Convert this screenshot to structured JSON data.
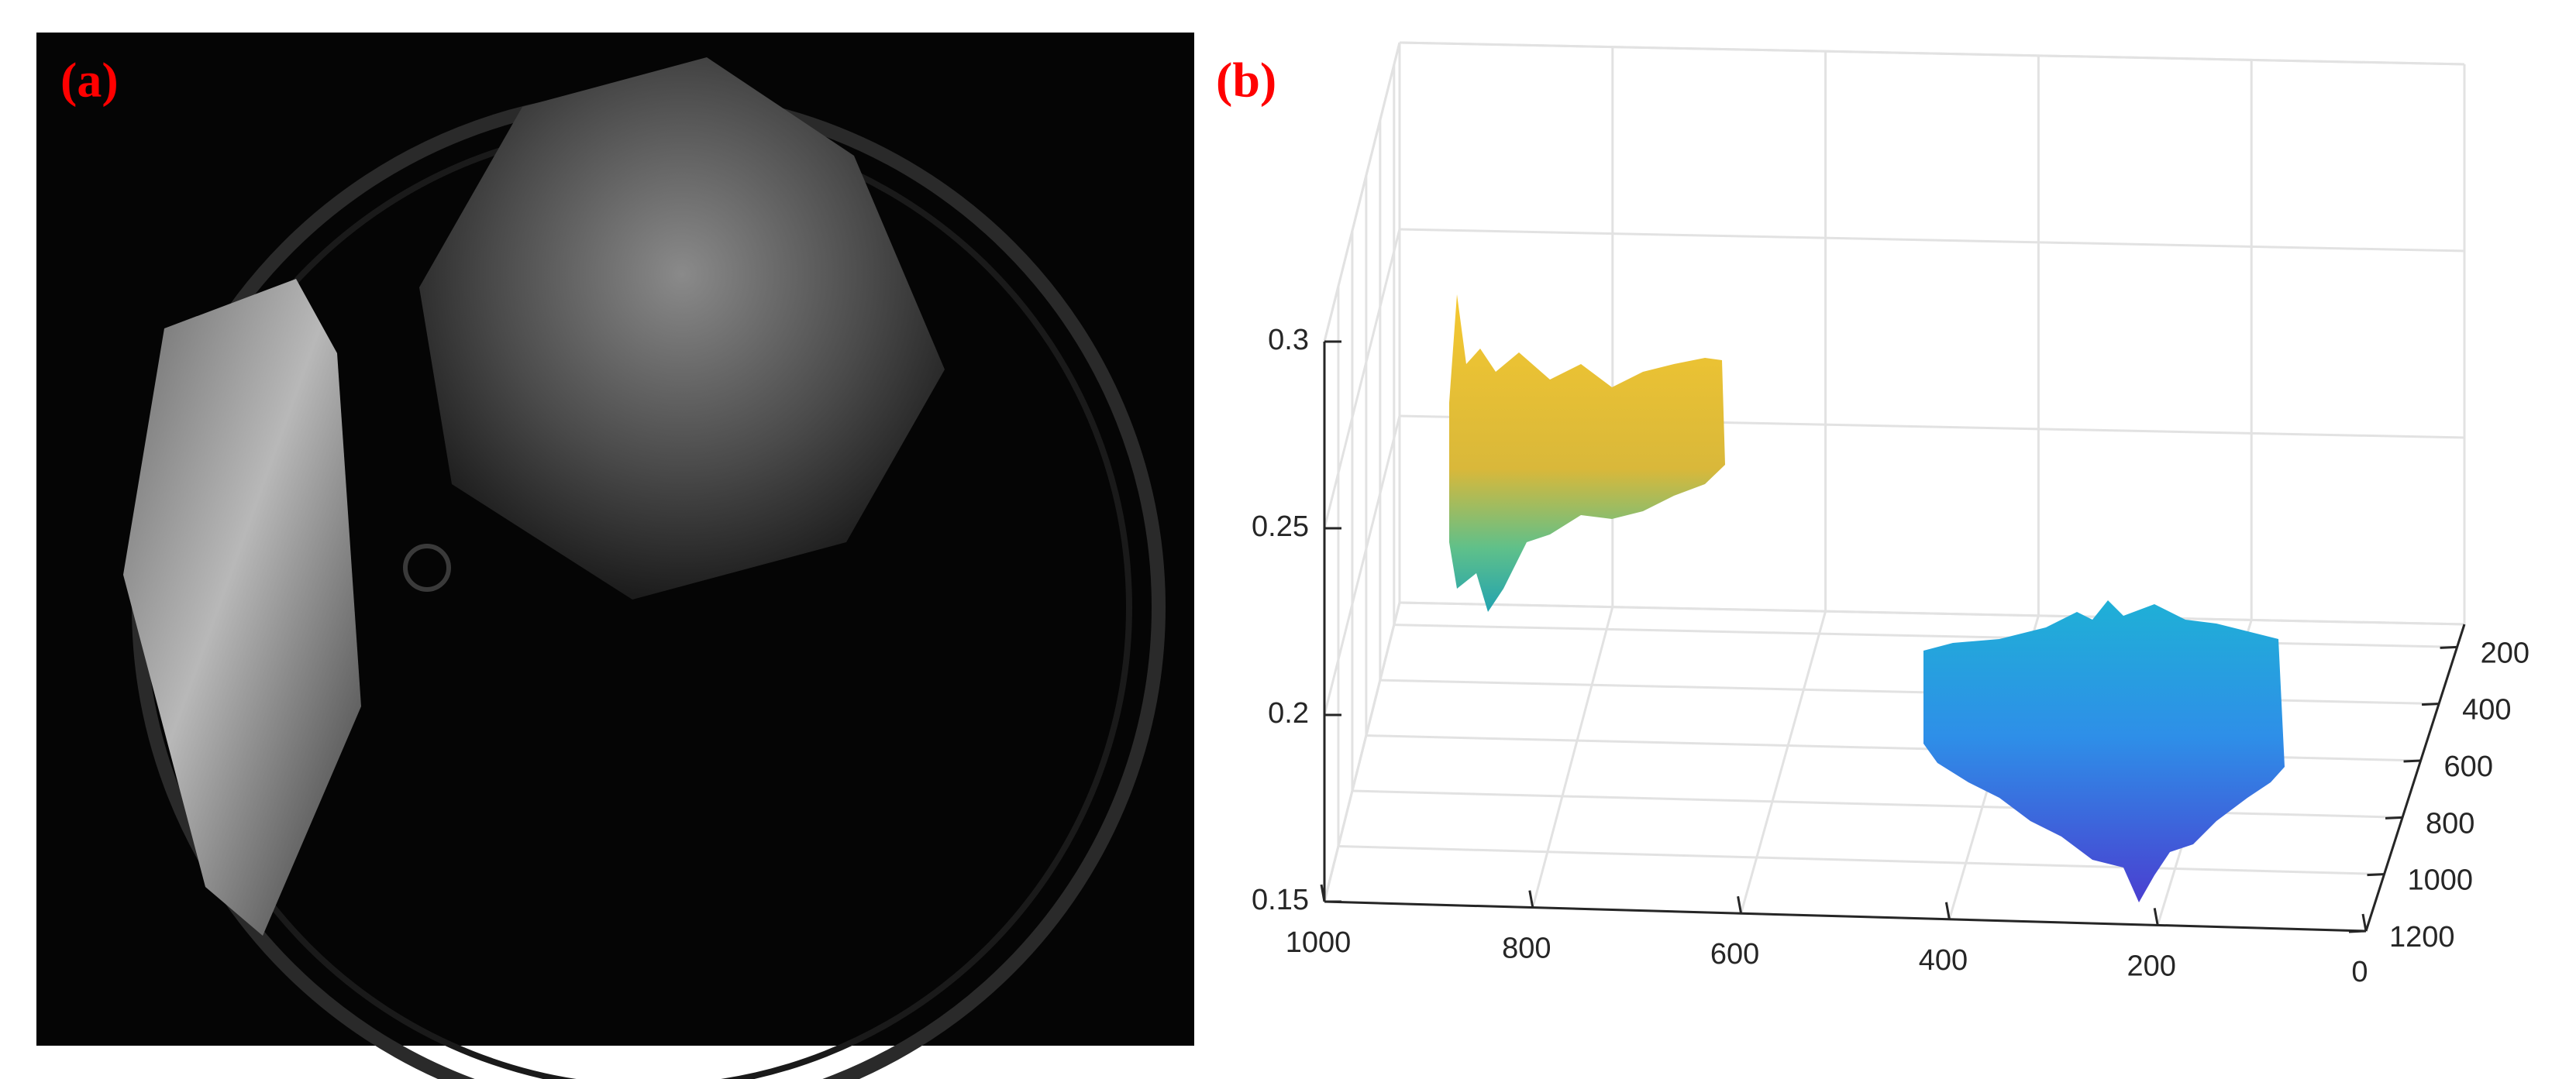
{
  "panels": [
    {
      "label": "(a)"
    },
    {
      "label": "(b)"
    }
  ],
  "chart_data": {
    "type": "surface3d",
    "xlim": [
      0,
      1000
    ],
    "xticks": [
      0,
      200,
      400,
      600,
      800,
      1000
    ],
    "ylim": [
      120,
      1200
    ],
    "yticks": [
      200,
      400,
      600,
      800,
      1000,
      1200
    ],
    "zlim": [
      0.15,
      0.3
    ],
    "zticks": [
      0.15,
      0.2,
      0.25,
      0.3
    ],
    "grid": true
  }
}
